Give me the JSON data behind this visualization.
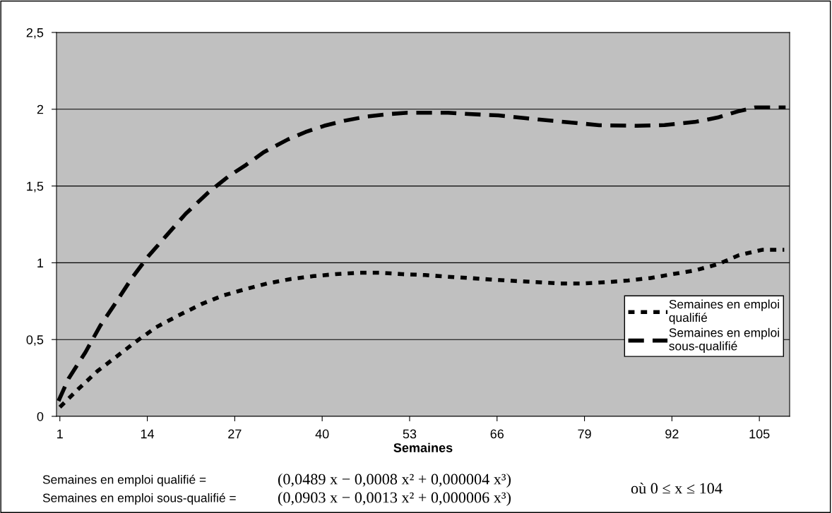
{
  "chart_data": {
    "type": "line",
    "xlabel": "Semaines",
    "xlim": [
      0.5,
      109.5
    ],
    "xticks": [
      1,
      14,
      27,
      40,
      53,
      66,
      79,
      92,
      105
    ],
    "ylim": [
      0,
      2.5
    ],
    "yticks": [
      {
        "value": 0,
        "label": "0"
      },
      {
        "value": 0.5,
        "label": "0,5"
      },
      {
        "value": 1,
        "label": "1"
      },
      {
        "value": 1.5,
        "label": "1,5"
      },
      {
        "value": 2,
        "label": "2"
      },
      {
        "value": 2.5,
        "label": "2,5"
      }
    ],
    "grid": "y",
    "legend": "bottom right",
    "marker": "none",
    "series": [
      {
        "name": "Semaines en emploi\nqualifié",
        "color": "#000000",
        "line_style": "dotted",
        "x": [
          1,
          3.8,
          6.6,
          9.3,
          12.2,
          15.3,
          18.6,
          22,
          25.2,
          28.5,
          31.9,
          35.3,
          38.7,
          42,
          45.4,
          48.6,
          51.9,
          55.3,
          58.7,
          62.1,
          65.4,
          68.8,
          72.2,
          75.4,
          78.8,
          82.1,
          85.5,
          88.7,
          92.1,
          95.4,
          98.8,
          102,
          105.5,
          108.7
        ],
        "values": [
          0.06,
          0.18,
          0.295,
          0.385,
          0.483,
          0.58,
          0.656,
          0.73,
          0.786,
          0.827,
          0.866,
          0.894,
          0.913,
          0.926,
          0.935,
          0.935,
          0.926,
          0.92,
          0.909,
          0.9,
          0.89,
          0.881,
          0.873,
          0.865,
          0.865,
          0.873,
          0.885,
          0.9,
          0.926,
          0.95,
          0.99,
          1.05,
          1.085,
          1.085
        ]
      },
      {
        "name": "Semaines en emploi\nsous-qualifié",
        "color": "#000000",
        "line_style": "dashed",
        "x": [
          0.8,
          2.3,
          4.8,
          7,
          8.9,
          11.7,
          14.1,
          16.7,
          19.7,
          23.1,
          26.1,
          28.7,
          31.3,
          34.9,
          37.5,
          40.3,
          43.3,
          46.7,
          50.1,
          52.7,
          56.1,
          58.7,
          61.7,
          66.2,
          71.5,
          77.4,
          81.2,
          86.8,
          90.9,
          95.4,
          98.8,
          101.8,
          104.4,
          108.9
        ],
        "values": [
          0.1,
          0.246,
          0.417,
          0.59,
          0.713,
          0.9,
          1.04,
          1.17,
          1.319,
          1.459,
          1.564,
          1.638,
          1.72,
          1.803,
          1.851,
          1.892,
          1.925,
          1.953,
          1.969,
          1.977,
          1.977,
          1.977,
          1.969,
          1.96,
          1.936,
          1.912,
          1.896,
          1.892,
          1.897,
          1.917,
          1.946,
          1.986,
          2.012,
          2.012
        ]
      }
    ],
    "annotations": [
      "Semaines en emploi qualifié =",
      "(0,0489 x − 0,0008 x² + 0,000004 x³)",
      "Semaines en emploi sous-qualifié =",
      "(0,0903 x − 0,0013 x² + 0,000006 x³)",
      "où 0 ≤ x ≤ 104"
    ]
  }
}
